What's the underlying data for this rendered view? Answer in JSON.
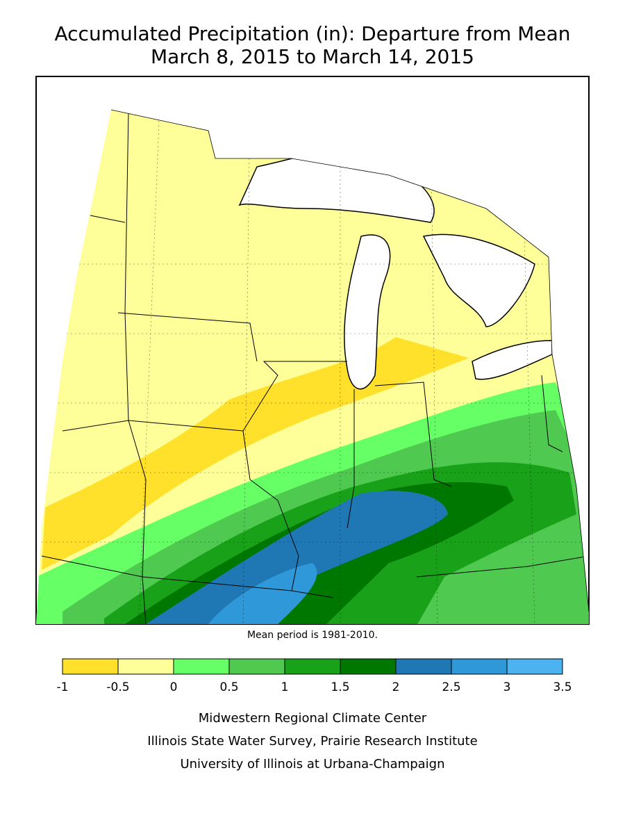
{
  "header": {
    "title_lines": [
      "Accumulated Precipitation (in): Departure from Mean",
      "March 8, 2015 to March 14, 2015"
    ]
  },
  "note": "Mean period is 1981-2010.",
  "legend": {
    "bounds": [
      -1,
      -0.5,
      0,
      0.5,
      1,
      1.5,
      2,
      2.5,
      3,
      3.5
    ],
    "colors": [
      "#ffe02a",
      "#ffff99",
      "#66ff66",
      "#4fc94f",
      "#1aa11a",
      "#007800",
      "#1f78b4",
      "#2e98d8",
      "#4cb2f0"
    ]
  },
  "credits": [
    "Midwestern Regional Climate Center",
    "Illinois State Water Survey, Prairie Research Institute",
    "University of Illinois at Urbana-Champaign"
  ]
}
